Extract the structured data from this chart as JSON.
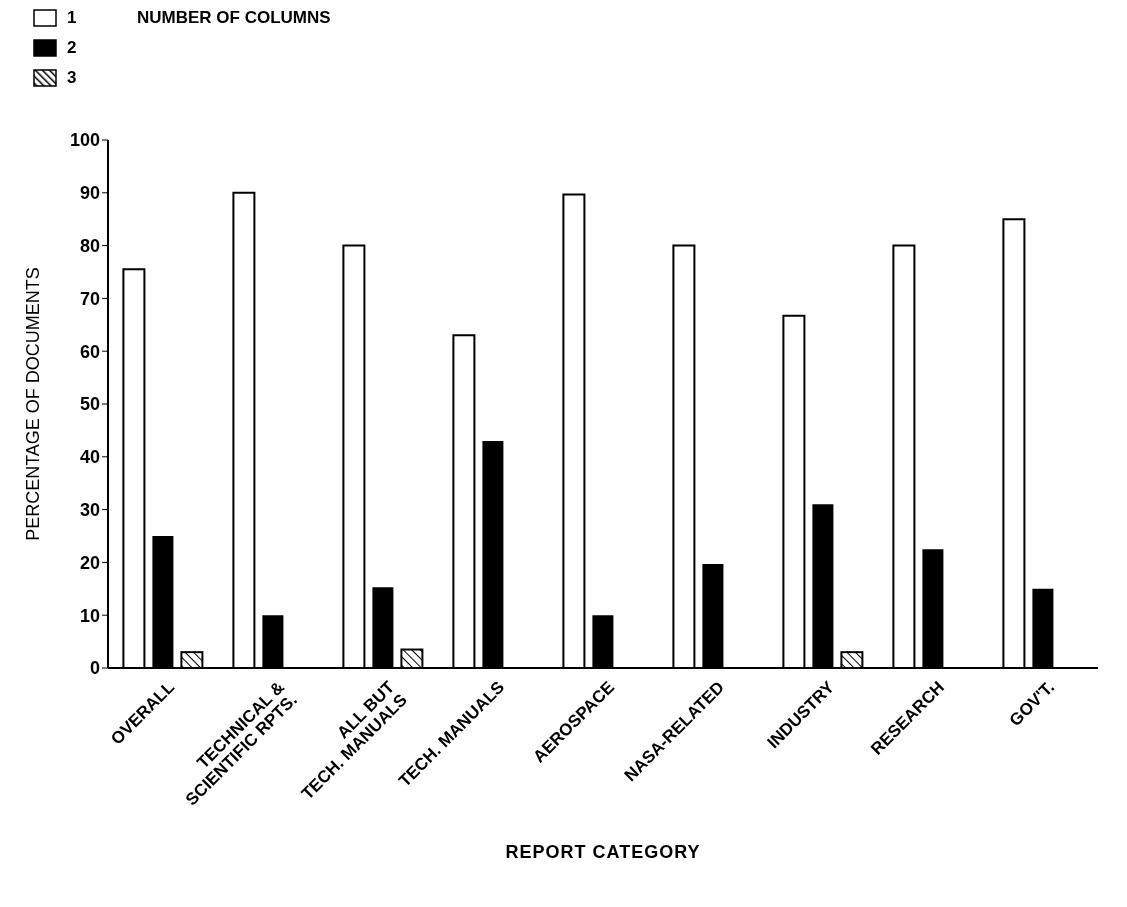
{
  "chart_data": {
    "type": "bar",
    "xlabel": "REPORT CATEGORY",
    "ylabel": "PERCENTAGE OF DOCUMENTS",
    "legend_title": "NUMBER OF COLUMNS",
    "legend": "top left",
    "grid": false,
    "categories": [
      "OVERALL",
      "TECHNICAL &\nSCIENTIFIC RPTS.",
      "ALL BUT\nTECH. MANUALS",
      "TECH. MANUALS",
      "AEROSPACE",
      "NASA-RELATED",
      "INDUSTRY",
      "RESEARCH",
      "GOV'T."
    ],
    "series": [
      {
        "name": "1",
        "color": "#ffffff",
        "values": [
          75.5,
          90,
          80,
          63,
          89.7,
          80,
          66.7,
          80,
          85
        ]
      },
      {
        "name": "2",
        "color": "#000000",
        "values": [
          25,
          10,
          15.3,
          43,
          10,
          19.7,
          31,
          22.5,
          15
        ]
      },
      {
        "name": "3",
        "color": "#000000",
        "values": [
          3,
          null,
          3.5,
          null,
          null,
          null,
          3,
          null,
          null
        ]
      }
    ],
    "ylim": [
      0,
      100
    ],
    "yticks": [
      0,
      10,
      20,
      30,
      40,
      50,
      60,
      70,
      80,
      90,
      100
    ]
  }
}
